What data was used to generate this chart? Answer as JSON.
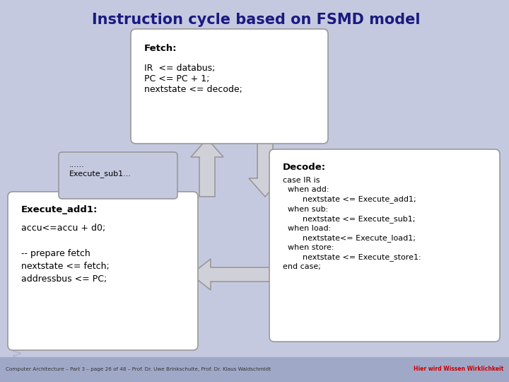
{
  "title": "Instruction cycle based on FSMD model",
  "bg_color": "#c5c9e0",
  "box_color": "#ffffff",
  "box_edge": "#999999",
  "arrow_fc": "#d0d0d8",
  "arrow_ec": "#999999",
  "fetch_title": "Fetch:",
  "fetch_body": "IR  <= databus;\nPC <= PC + 1;\nnextstate <= decode;",
  "decode_title": "Decode:",
  "decode_body": "case IR is\n  when add:\n        nextstate <= Execute_add1;\n  when sub:\n        nextstate <= Execute_sub1;\n  when load:\n        nextstate<= Execute_load1;\n  when store:\n        nextstate <= Execute_store1:\nend case;",
  "execute_sub_label": "......\nExecute_sub1...",
  "execute_add_title": "Execute_add1:",
  "execute_add_body": "accu<=accu + d0;\n\n-- prepare fetch\nnextstate <= fetch;\naddressbus <= PC;",
  "footer_left": "Computer Architecture – Part 3 – page 26 of 48 – Prof. Dr. Uwe Brinkschulte, Prof. Dr. Klaus Waldschmidt",
  "footer_right": "Hier wird Wissen Wirklichkeit",
  "footer_bg": "#a0a8c8",
  "title_color": "#1a1a80",
  "footer_text_color": "#333333",
  "footer_right_color": "#cc0000",
  "watermark_color": "#aab0cc"
}
